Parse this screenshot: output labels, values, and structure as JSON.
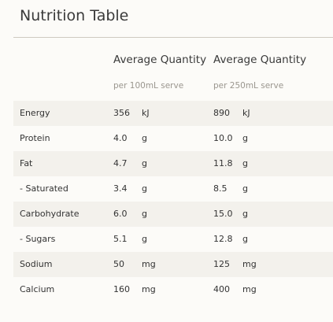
{
  "header": {
    "title": "Nutrition Table"
  },
  "table": {
    "columns": [
      {
        "heading": "Average Quantity",
        "subheading": "per 100mL serve"
      },
      {
        "heading": "Average Quantity",
        "subheading": "per 250mL serve"
      }
    ],
    "rows": [
      [
        "Energy",
        "356",
        "kJ",
        "890",
        "kJ"
      ],
      [
        "Protein",
        "4.0",
        "g",
        "10.0",
        "g"
      ],
      [
        "Fat",
        "4.7",
        "g",
        "11.8",
        "g"
      ],
      [
        "- Saturated",
        "3.4",
        "g",
        "8.5",
        "g"
      ],
      [
        "Carbohydrate",
        "6.0",
        "g",
        "15.0",
        "g"
      ],
      [
        "- Sugars",
        "5.1",
        "g",
        "12.8",
        "g"
      ],
      [
        "Sodium",
        "50",
        "mg",
        "125",
        "mg"
      ],
      [
        "Calcium",
        "160",
        "mg",
        "400",
        "mg"
      ]
    ]
  }
}
